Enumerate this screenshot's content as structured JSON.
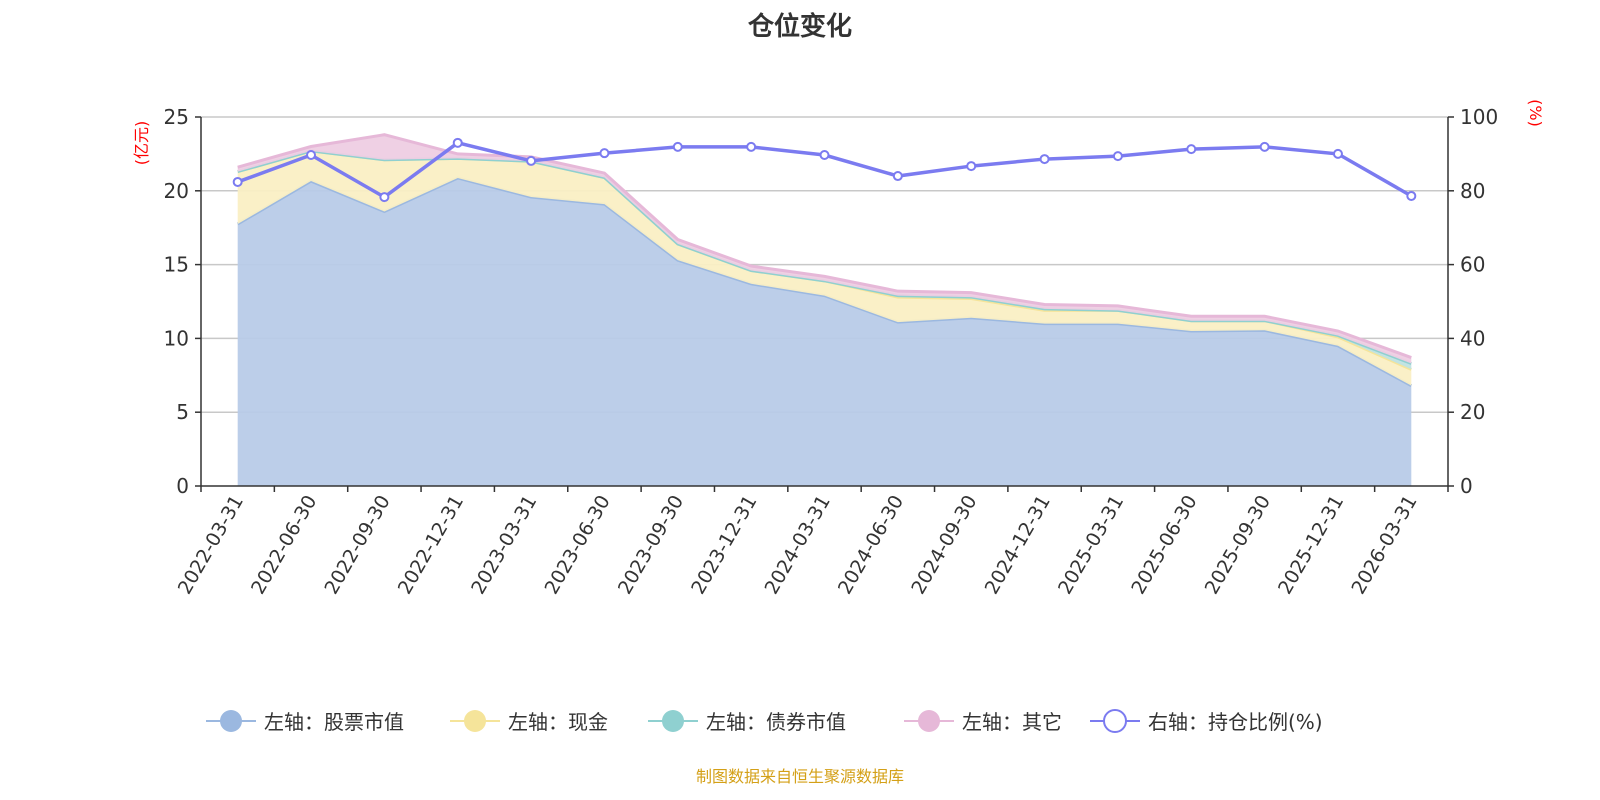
{
  "chart_data": {
    "type": "area",
    "title": "仓位变化",
    "source": "制图数据来自恒生聚源数据库",
    "left_unit": "(亿元)",
    "right_unit": "(%)",
    "ylim_left": [
      0,
      25
    ],
    "ylim_right": [
      0,
      100
    ],
    "yticks_left": [
      0,
      5,
      10,
      15,
      20,
      25
    ],
    "yticks_right": [
      0,
      20,
      40,
      60,
      80,
      100
    ],
    "categories": [
      "2022-03-31",
      "2022-06-30",
      "2022-09-30",
      "2022-12-31",
      "2023-03-31",
      "2023-06-30",
      "2023-09-30",
      "2023-12-31",
      "2024-03-31",
      "2024-06-30",
      "2024-09-30",
      "2024-12-31",
      "2025-03-31",
      "2025-06-30",
      "2025-09-30",
      "2025-12-31",
      "2026-03-31"
    ],
    "series": [
      {
        "name": "左轴：股票市值",
        "axis": "left",
        "stack": true,
        "color": "#9bb8e0",
        "fill": "#b8cbe8",
        "values": [
          17.75,
          20.66,
          18.6,
          20.87,
          19.58,
          19.1,
          15.3,
          13.7,
          12.9,
          11.1,
          11.4,
          11.0,
          11.0,
          10.5,
          10.55,
          9.5,
          6.8
        ]
      },
      {
        "name": "左轴：现金",
        "axis": "left",
        "stack": true,
        "color": "#f5e49a",
        "fill": "#faefc4",
        "values": [
          3.55,
          2.04,
          3.5,
          1.33,
          2.42,
          1.8,
          1.1,
          0.9,
          1.0,
          1.7,
          1.3,
          0.9,
          0.9,
          0.7,
          0.65,
          0.6,
          1.1
        ]
      },
      {
        "name": "左轴：债券市值",
        "axis": "left",
        "stack": true,
        "color": "#8fd0d0",
        "fill": "#bfe3e3",
        "values": [
          0,
          0,
          0,
          0,
          0,
          0,
          0,
          0,
          0,
          0.1,
          0.1,
          0.1,
          0,
          0,
          0,
          0.1,
          0.4
        ]
      },
      {
        "name": "左轴：其它",
        "axis": "left",
        "stack": true,
        "color": "#e6b8d8",
        "fill": "#eecde3",
        "values": [
          0.3,
          0.3,
          1.7,
          0.3,
          0.3,
          0.3,
          0.3,
          0.3,
          0.3,
          0.3,
          0.3,
          0.3,
          0.3,
          0.3,
          0.3,
          0.3,
          0.4
        ]
      },
      {
        "name": "右轴：持仓比例(%)",
        "axis": "right",
        "stack": false,
        "color": "#7b7bf0",
        "values": [
          82.4,
          89.7,
          78.3,
          93.0,
          88.1,
          90.2,
          91.9,
          91.9,
          89.7,
          84.0,
          86.7,
          88.6,
          89.4,
          91.3,
          91.9,
          90.0,
          78.6
        ]
      }
    ]
  }
}
